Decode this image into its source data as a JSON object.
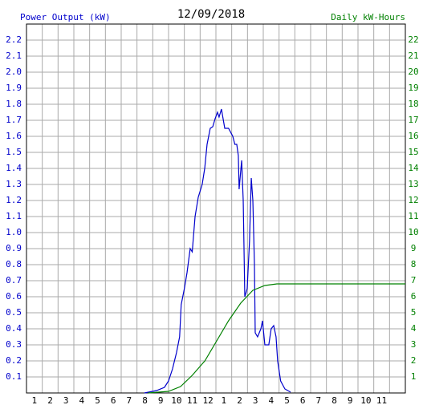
{
  "chart_data": {
    "type": "line",
    "title": "12/09/2018",
    "xlim": [
      0,
      24
    ],
    "xticks": [
      1,
      2,
      3,
      4,
      5,
      6,
      7,
      8,
      9,
      10,
      11,
      12,
      {
        "value": 13,
        "label": "1"
      },
      {
        "value": 14,
        "label": "2"
      },
      {
        "value": 15,
        "label": "3"
      },
      {
        "value": 16,
        "label": "4"
      },
      {
        "value": 17,
        "label": "5"
      },
      {
        "value": 18,
        "label": "6"
      },
      {
        "value": 19,
        "label": "7"
      },
      {
        "value": 20,
        "label": "8"
      },
      {
        "value": 21,
        "label": "9"
      },
      {
        "value": 22,
        "label": "10"
      },
      {
        "value": 23,
        "label": "11"
      }
    ],
    "ylim": [
      0,
      2.3
    ],
    "yticks": [
      0.1,
      0.2,
      0.3,
      0.4,
      0.5,
      0.6,
      0.7,
      0.8,
      0.9,
      {
        "value": 1,
        "label": "1.0"
      },
      1.1,
      1.2,
      1.3,
      1.4,
      1.5,
      1.6,
      1.7,
      1.8,
      1.9,
      {
        "value": 2,
        "label": "2.0"
      },
      2.1,
      2.2
    ],
    "y2lim": [
      0,
      23
    ],
    "y2ticks": [
      1,
      2,
      3,
      4,
      5,
      6,
      7,
      8,
      9,
      10,
      11,
      12,
      13,
      14,
      15,
      16,
      17,
      18,
      19,
      20,
      21,
      22
    ],
    "grid": true,
    "series": [
      {
        "name": "Power Output (kW)",
        "color": "#0000cc",
        "x": [
          7.47,
          8.24,
          8.74,
          9.0,
          9.25,
          9.5,
          9.7,
          9.8,
          10.0,
          10.17,
          10.37,
          10.5,
          10.68,
          10.88,
          11.13,
          11.29,
          11.44,
          11.64,
          11.8,
          11.95,
          12.1,
          12.2,
          12.35,
          12.56,
          12.8,
          13.07,
          13.2,
          13.32,
          13.42,
          13.47,
          13.63,
          13.73,
          13.83,
          13.98,
          14.13,
          14.24,
          14.34,
          14.44,
          14.49,
          14.64,
          14.85,
          14.95,
          15.1,
          15.35,
          15.5,
          15.66,
          15.81,
          15.91,
          16.1,
          16.37,
          16.73
        ],
        "values": [
          0.0,
          0.015,
          0.035,
          0.075,
          0.15,
          0.25,
          0.35,
          0.55,
          0.65,
          0.75,
          0.9,
          0.88,
          1.1,
          1.22,
          1.3,
          1.4,
          1.55,
          1.65,
          1.66,
          1.71,
          1.75,
          1.72,
          1.77,
          1.65,
          1.65,
          1.6,
          1.55,
          1.55,
          1.48,
          1.27,
          1.45,
          1.2,
          0.6,
          0.65,
          0.95,
          1.34,
          1.2,
          0.8,
          0.375,
          0.35,
          0.4,
          0.45,
          0.3,
          0.3,
          0.4,
          0.42,
          0.35,
          0.2,
          0.075,
          0.025,
          0.005
        ]
      },
      {
        "name": "Daily kW-Hours",
        "color": "#008000",
        "axis": "y2",
        "x": [
          7.7,
          9.0,
          9.76,
          10.5,
          11.3,
          12.05,
          12.8,
          13.57,
          14.34,
          15.1,
          15.86,
          24
        ],
        "values": [
          0,
          0.1,
          0.4,
          1.1,
          2.0,
          3.25,
          4.5,
          5.6,
          6.4,
          6.7,
          6.8,
          6.8
        ]
      }
    ]
  }
}
